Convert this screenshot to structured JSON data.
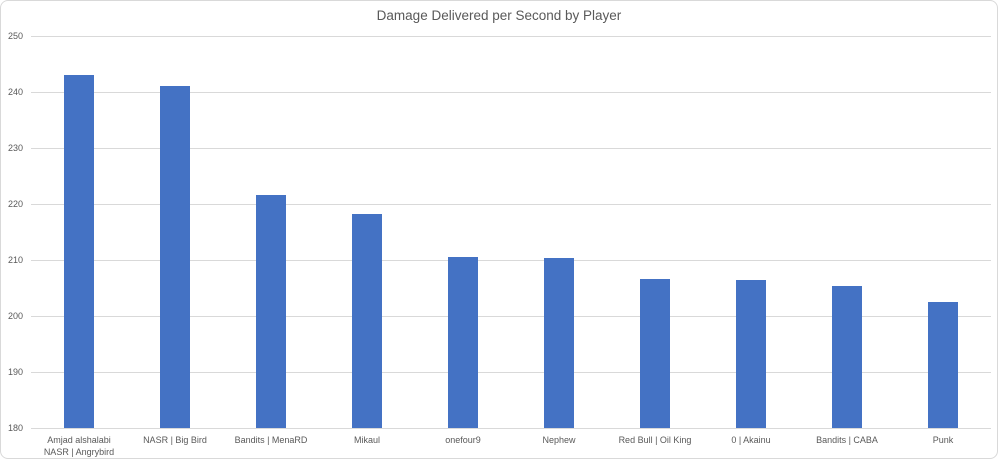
{
  "chart_data": {
    "type": "bar",
    "title": "Damage Delivered per Second by Player",
    "categories": [
      "Amjad alshalabi NASR | Angrybird",
      "NASR | Big Bird",
      "Bandits | MenaRD",
      "Mikaul",
      "onefour9",
      "Nephew",
      "Red Bull | Oil King",
      "0 | Akainu",
      "Bandits | CABA",
      "Punk"
    ],
    "values": [
      243,
      241,
      221.6,
      218.2,
      210.6,
      210.4,
      206.6,
      206.4,
      205.4,
      202.5
    ],
    "xlabel": "",
    "ylabel": "",
    "ylim": [
      180,
      250
    ],
    "yticks": [
      250,
      240,
      230,
      220,
      210,
      200,
      190,
      180
    ],
    "grid": "horizontal",
    "legend_position": "none",
    "colors": {
      "bar": "#4472C4",
      "gridline": "#D9D9D9",
      "text": "#595959",
      "frame_border": "#D9D9D9",
      "background": "#FFFFFF"
    }
  }
}
